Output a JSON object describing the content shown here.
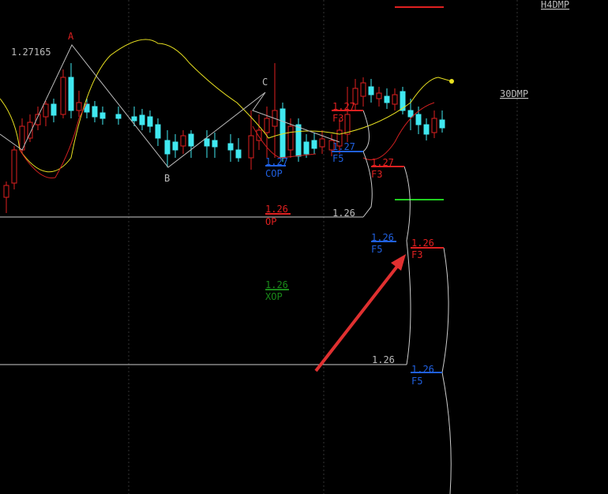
{
  "pattern_points": [
    "A",
    "B",
    "C"
  ],
  "price_label": "1.27165",
  "indicators": [
    "H4DMP",
    "30DMP"
  ],
  "levels": [
    {
      "value": "1.27",
      "tag": "F3"
    },
    {
      "value": "1.27",
      "tag": "F5"
    },
    {
      "value": "1.27",
      "tag": "COP"
    },
    {
      "value": "1.26",
      "tag": "OP"
    },
    {
      "value": "1.27",
      "tag": "F3"
    },
    {
      "value": "1.26",
      "tag": "F5"
    },
    {
      "value": "1.26",
      "tag": "F3"
    },
    {
      "value": "1.26",
      "tag": "XOP"
    },
    {
      "value": "1.26",
      "tag": "F5"
    }
  ],
  "guide_labels": [
    "1.26",
    "1.26"
  ]
}
